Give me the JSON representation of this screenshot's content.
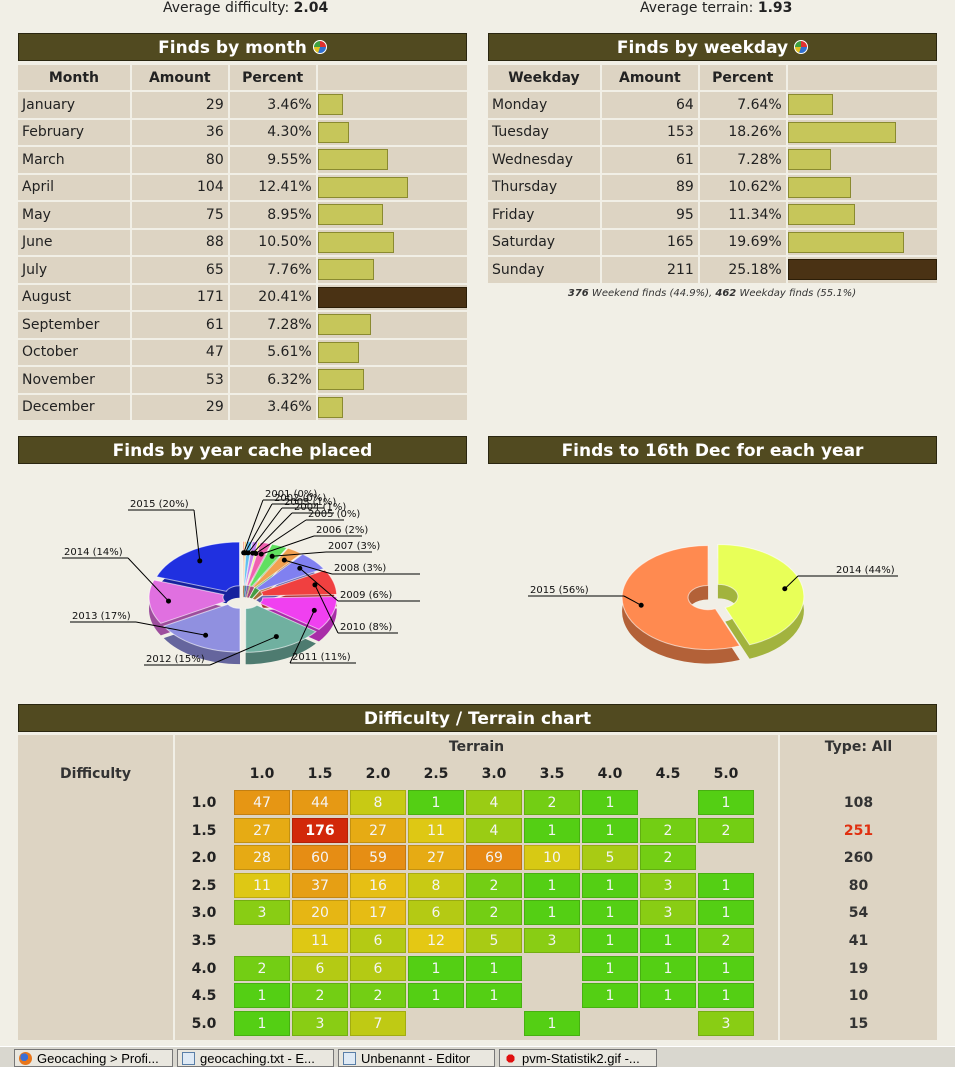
{
  "summary": {
    "avg_difficulty_label": "Average difficulty:",
    "avg_difficulty_value": "2.04",
    "avg_terrain_label": "Average terrain:",
    "avg_terrain_value": "1.93"
  },
  "by_month": {
    "title": "Finds by month",
    "columns": [
      "Month",
      "Amount",
      "Percent"
    ],
    "rows": [
      {
        "label": "January",
        "amount": "29",
        "percent": "3.46%",
        "value": 3.46
      },
      {
        "label": "February",
        "amount": "36",
        "percent": "4.30%",
        "value": 4.3
      },
      {
        "label": "March",
        "amount": "80",
        "percent": "9.55%",
        "value": 9.55
      },
      {
        "label": "April",
        "amount": "104",
        "percent": "12.41%",
        "value": 12.41
      },
      {
        "label": "May",
        "amount": "75",
        "percent": "8.95%",
        "value": 8.95
      },
      {
        "label": "June",
        "amount": "88",
        "percent": "10.50%",
        "value": 10.5
      },
      {
        "label": "July",
        "amount": "65",
        "percent": "7.76%",
        "value": 7.76
      },
      {
        "label": "August",
        "amount": "171",
        "percent": "20.41%",
        "value": 20.41,
        "max": true
      },
      {
        "label": "September",
        "amount": "61",
        "percent": "7.28%",
        "value": 7.28
      },
      {
        "label": "October",
        "amount": "47",
        "percent": "5.61%",
        "value": 5.61
      },
      {
        "label": "November",
        "amount": "53",
        "percent": "6.32%",
        "value": 6.32
      },
      {
        "label": "December",
        "amount": "29",
        "percent": "3.46%",
        "value": 3.46
      }
    ]
  },
  "by_weekday": {
    "title": "Finds by weekday",
    "columns": [
      "Weekday",
      "Amount",
      "Percent"
    ],
    "rows": [
      {
        "label": "Monday",
        "amount": "64",
        "percent": "7.64%",
        "value": 7.64
      },
      {
        "label": "Tuesday",
        "amount": "153",
        "percent": "18.26%",
        "value": 18.26
      },
      {
        "label": "Wednesday",
        "amount": "61",
        "percent": "7.28%",
        "value": 7.28
      },
      {
        "label": "Thursday",
        "amount": "89",
        "percent": "10.62%",
        "value": 10.62
      },
      {
        "label": "Friday",
        "amount": "95",
        "percent": "11.34%",
        "value": 11.34
      },
      {
        "label": "Saturday",
        "amount": "165",
        "percent": "19.69%",
        "value": 19.69
      },
      {
        "label": "Sunday",
        "amount": "211",
        "percent": "25.18%",
        "value": 25.18,
        "max": true
      }
    ],
    "note_weekend_count": "376",
    "note_weekend_text": " Weekend finds (44.9%), ",
    "note_weekday_count": "462",
    "note_weekday_text": " Weekday finds (55.1%)"
  },
  "chart_data": [
    {
      "type": "pie",
      "title": "Finds by year cache placed",
      "slices": [
        {
          "label": "2001 (0%)",
          "value": 0.3,
          "color": "#f08060"
        },
        {
          "label": "2002 (0%)",
          "value": 0.3,
          "color": "#f0c040"
        },
        {
          "label": "2003 (1%)",
          "value": 1,
          "color": "#60c0f0"
        },
        {
          "label": "2004 (1%)",
          "value": 1,
          "color": "#c080f0"
        },
        {
          "label": "2005 (0%)",
          "value": 0.4,
          "color": "#f0f060"
        },
        {
          "label": "2006 (2%)",
          "value": 2,
          "color": "#f060b0"
        },
        {
          "label": "2007 (3%)",
          "value": 3,
          "color": "#60e060"
        },
        {
          "label": "2008 (3%)",
          "value": 3,
          "color": "#f0a050"
        },
        {
          "label": "2009 (6%)",
          "value": 6,
          "color": "#8080f0"
        },
        {
          "label": "2010 (8%)",
          "value": 8,
          "color": "#f04040"
        },
        {
          "label": "2011 (11%)",
          "value": 11,
          "color": "#f040f0"
        },
        {
          "label": "2012 (15%)",
          "value": 15,
          "color": "#70b0a0"
        },
        {
          "label": "2013 (17%)",
          "value": 17,
          "color": "#9090e0"
        },
        {
          "label": "2014 (14%)",
          "value": 14,
          "color": "#e070e0"
        },
        {
          "label": "2015 (20%)",
          "value": 20,
          "color": "#2030e0"
        }
      ]
    },
    {
      "type": "pie",
      "title": "Finds to 16th Dec for each year",
      "slices": [
        {
          "label": "2014 (44%)",
          "value": 44,
          "color": "#e8ff58"
        },
        {
          "label": "2015 (56%)",
          "value": 56,
          "color": "#ff8a50"
        }
      ]
    }
  ],
  "dt_chart": {
    "title": "Difficulty / Terrain chart",
    "terrain_label": "Terrain",
    "difficulty_label": "Difficulty",
    "type_label": "Type: All",
    "terrain_values": [
      "1.0",
      "1.5",
      "2.0",
      "2.5",
      "3.0",
      "3.5",
      "4.0",
      "4.5",
      "5.0"
    ],
    "rows": [
      {
        "difficulty": "1.0",
        "cells": [
          "47",
          "44",
          "8",
          "1",
          "4",
          "2",
          "1",
          "",
          "1"
        ],
        "total": "108"
      },
      {
        "difficulty": "1.5",
        "cells": [
          "27",
          "176",
          "27",
          "11",
          "4",
          "1",
          "1",
          "2",
          "2"
        ],
        "total": "251",
        "total_highlight": true
      },
      {
        "difficulty": "2.0",
        "cells": [
          "28",
          "60",
          "59",
          "27",
          "69",
          "10",
          "5",
          "2",
          ""
        ],
        "total": "260"
      },
      {
        "difficulty": "2.5",
        "cells": [
          "11",
          "37",
          "16",
          "8",
          "2",
          "1",
          "1",
          "3",
          "1"
        ],
        "total": "80"
      },
      {
        "difficulty": "3.0",
        "cells": [
          "3",
          "20",
          "17",
          "6",
          "2",
          "1",
          "1",
          "3",
          "1"
        ],
        "total": "54"
      },
      {
        "difficulty": "3.5",
        "cells": [
          "",
          "11",
          "6",
          "12",
          "5",
          "3",
          "1",
          "1",
          "2"
        ],
        "total": "41"
      },
      {
        "difficulty": "4.0",
        "cells": [
          "2",
          "6",
          "6",
          "1",
          "1",
          "",
          "1",
          "1",
          "1"
        ],
        "total": "19"
      },
      {
        "difficulty": "4.5",
        "cells": [
          "1",
          "2",
          "2",
          "1",
          "1",
          "",
          "1",
          "1",
          "1"
        ],
        "total": "10"
      },
      {
        "difficulty": "5.0",
        "cells": [
          "1",
          "3",
          "7",
          "",
          "",
          "1",
          "",
          "",
          "3"
        ],
        "total": "15"
      }
    ]
  },
  "taskbar": {
    "items": [
      {
        "label": "Geocaching > Profi...",
        "icon": "firefox-icon"
      },
      {
        "label": "geocaching.txt - E...",
        "icon": "notepad-icon"
      },
      {
        "label": "Unbenannt - Editor",
        "icon": "notepad-icon"
      },
      {
        "label": "pvm-Statistik2.gif -...",
        "icon": "paint-icon"
      }
    ]
  }
}
